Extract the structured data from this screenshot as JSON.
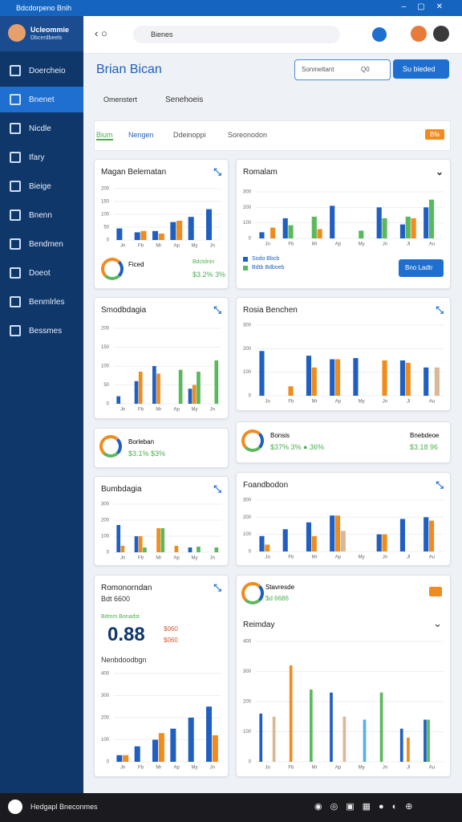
{
  "window": {
    "title": "Bdcdorpeno Bnih"
  },
  "profile": {
    "name": "Ucleommie",
    "sub": "Dbcerdbeels"
  },
  "sidebar": {
    "items": [
      "Doercheio",
      "Bnenet",
      "Nicdle",
      "Ifary",
      "Bieige",
      "Bnenn",
      "Bendmen",
      "Doeot",
      "Benmlrles",
      "Bessmes"
    ]
  },
  "browser": {
    "address": "Bienes"
  },
  "header": {
    "title": "Brian Bican",
    "search": "Sonmeltant",
    "search_hint": "Q0",
    "button": "Su bieded"
  },
  "tabs": [
    "Omenstert",
    "Senehoeis"
  ],
  "filters": [
    "Bium",
    "Nengen",
    "Ddeinoppi",
    "Soreonodon"
  ],
  "filter_badge": "Bfa",
  "cards": [
    {
      "title": "Magan Belematan",
      "stat_label": "Ficed",
      "stat_value": "$3.2% 3%",
      "stat_sub": "Bdctdnin",
      "chart": {
        "type": "bar",
        "ylim": [
          0,
          200
        ],
        "yticks": [
          0,
          50,
          100,
          150,
          200
        ],
        "categories": [
          "Jn",
          "Fb",
          "Mr",
          "Ap",
          "My",
          "Jn"
        ],
        "series": [
          {
            "color": "#1f5fbf",
            "values": [
              45,
              30,
              35,
              70,
              90,
              120
            ]
          },
          {
            "color": "#f08c1e",
            "values": [
              0,
              35,
              25,
              75,
              0,
              0
            ]
          }
        ]
      }
    },
    {
      "title": "Romalam",
      "button": "Bno Ladtr",
      "chart": {
        "type": "bar",
        "ylim": [
          0,
          300
        ],
        "yticks": [
          0,
          100,
          200,
          300
        ],
        "categories": [
          "Jo",
          "Fb",
          "Mr",
          "Ap",
          "My",
          "Jn",
          "Jl",
          "Au"
        ],
        "series": [
          {
            "name": "Sodo Bbcb",
            "color": "#1f5fbf",
            "values": [
              40,
              130,
              0,
              210,
              0,
              200,
              90,
              200
            ]
          },
          {
            "name": "Bdtb Bdboeb",
            "color": "#5cb85c",
            "values": [
              0,
              85,
              140,
              0,
              50,
              130,
              140,
              250
            ]
          },
          {
            "color": "#f08c1e",
            "values": [
              70,
              0,
              60,
              0,
              0,
              0,
              130,
              0
            ]
          }
        ]
      }
    },
    {
      "title": "Smodbdagia",
      "chart": {
        "type": "bar",
        "ylim": [
          0,
          200
        ],
        "yticks": [
          0,
          50,
          100,
          150,
          200
        ],
        "categories": [
          "Jn",
          "Fb",
          "Mr",
          "Ap",
          "My",
          "Jn"
        ],
        "series": [
          {
            "color": "#1f5fbf",
            "values": [
              20,
              60,
              100,
              0,
              40,
              0
            ]
          },
          {
            "color": "#f08c1e",
            "values": [
              0,
              85,
              80,
              0,
              50,
              0
            ]
          },
          {
            "color": "#5cb85c",
            "values": [
              0,
              0,
              0,
              90,
              85,
              115
            ]
          }
        ]
      }
    },
    {
      "title": "Rosia Benchen",
      "chart": {
        "type": "bar",
        "ylim": [
          0,
          300
        ],
        "yticks": [
          0,
          100,
          200,
          300
        ],
        "categories": [
          "Jo",
          "Fb",
          "Mr",
          "Ap",
          "My",
          "Jn",
          "Jl",
          "Au"
        ],
        "series": [
          {
            "color": "#1f5fbf",
            "values": [
              190,
              0,
              170,
              155,
              160,
              0,
              150,
              120
            ]
          },
          {
            "color": "#f08c1e",
            "values": [
              0,
              40,
              120,
              155,
              0,
              150,
              140,
              0
            ]
          },
          {
            "color": "#d9b896",
            "values": [
              0,
              0,
              0,
              0,
              0,
              0,
              0,
              120
            ]
          }
        ]
      }
    },
    {
      "title": "Borleban",
      "stat_value": "$3.1% $3%"
    },
    {
      "title": "Bonsis",
      "stat_value": "$37% 3% ● 36%",
      "stat_right": "Bnebdeoe",
      "stat_right_value": "$3.18 96"
    },
    {
      "title": "Bumbdagia",
      "chart": {
        "type": "bar",
        "ylim": [
          0,
          300
        ],
        "yticks": [
          0,
          100,
          200,
          300
        ],
        "categories": [
          "Jn",
          "Fb",
          "Mr",
          "Ap",
          "My",
          "Jn"
        ],
        "series": [
          {
            "color": "#1f5fbf",
            "values": [
              170,
              100,
              0,
              0,
              30,
              0
            ]
          },
          {
            "color": "#f08c1e",
            "values": [
              40,
              100,
              150,
              40,
              0,
              0
            ]
          },
          {
            "color": "#5cb85c",
            "values": [
              0,
              30,
              150,
              0,
              35,
              30
            ]
          }
        ]
      }
    },
    {
      "title": "Foandbodon",
      "chart": {
        "type": "bar",
        "ylim": [
          0,
          300
        ],
        "yticks": [
          0,
          100,
          200,
          300
        ],
        "categories": [
          "Jo",
          "Fb",
          "Mr",
          "Ap",
          "My",
          "Jn",
          "Jl",
          "Au"
        ],
        "series": [
          {
            "color": "#1f5fbf",
            "values": [
              90,
              130,
              170,
              210,
              0,
              100,
              190,
              200
            ]
          },
          {
            "color": "#f08c1e",
            "values": [
              40,
              0,
              90,
              210,
              0,
              100,
              0,
              180
            ]
          },
          {
            "color": "#d9b896",
            "values": [
              0,
              0,
              0,
              120,
              0,
              0,
              0,
              0
            ]
          }
        ]
      }
    },
    {
      "title": "Romonorndan",
      "sub": "Bdt 6600",
      "big": "0.88",
      "big_label": "Bdmm Bonadst",
      "big_a": "$060",
      "big_b": "$060",
      "chart_title": "Nenbdoodbgn",
      "chart": {
        "type": "bar",
        "ylim": [
          0,
          400
        ],
        "yticks": [
          0,
          100,
          200,
          300,
          400
        ],
        "categories": [
          "Jn",
          "Fb",
          "Mr",
          "Ap",
          "My",
          "Jn"
        ],
        "series": [
          {
            "color": "#1f5fbf",
            "values": [
              30,
              70,
              100,
              150,
              200,
              250
            ]
          },
          {
            "color": "#f08c1e",
            "values": [
              30,
              0,
              130,
              0,
              0,
              120
            ]
          }
        ]
      }
    },
    {
      "title": "Stavresde",
      "sub": "$d 6686",
      "chart_title": "Reimday",
      "chart": {
        "type": "bar",
        "ylim": [
          0,
          400
        ],
        "yticks": [
          0,
          100,
          200,
          300,
          400
        ],
        "categories": [
          "Jo",
          "Fb",
          "Mr",
          "Ap",
          "My",
          "Jn",
          "Jl",
          "Au"
        ],
        "series": [
          {
            "color": "#1f5fbf",
            "values": [
              160,
              0,
              0,
              230,
              0,
              0,
              110,
              140
            ]
          },
          {
            "color": "#5cb85c",
            "values": [
              0,
              0,
              240,
              0,
              0,
              230,
              0,
              140
            ]
          },
          {
            "color": "#f08c1e",
            "values": [
              0,
              320,
              0,
              0,
              0,
              0,
              80,
              0
            ]
          },
          {
            "color": "#5aaee8",
            "values": [
              0,
              0,
              0,
              0,
              140,
              0,
              0,
              0
            ]
          },
          {
            "color": "#d9b896",
            "values": [
              150,
              0,
              0,
              150,
              0,
              0,
              0,
              0
            ]
          }
        ]
      }
    }
  ],
  "taskbar": {
    "label": "Hedgapl Bneconmes"
  }
}
